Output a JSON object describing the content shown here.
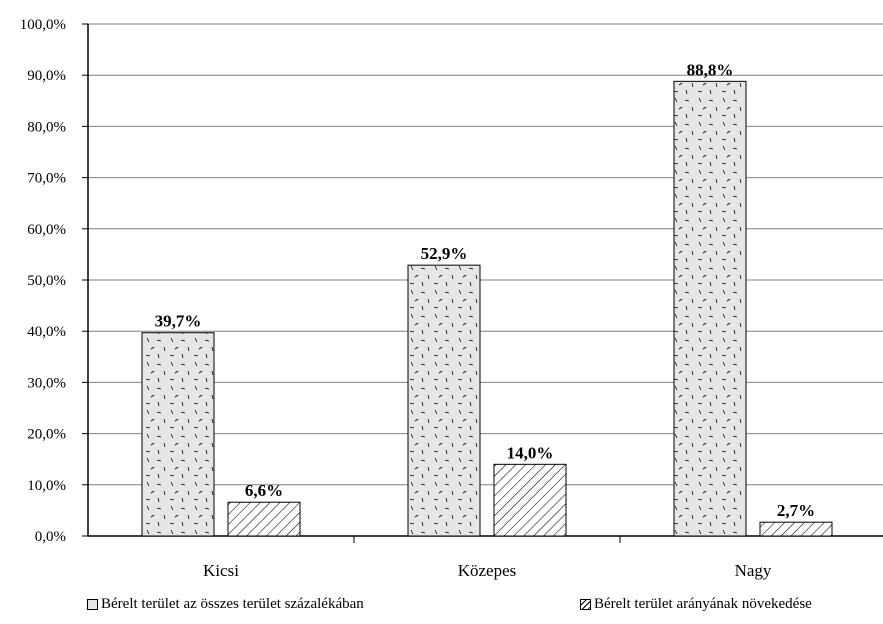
{
  "chart_data": {
    "type": "bar",
    "categories": [
      "Kicsi",
      "Közepes",
      "Nagy"
    ],
    "series": [
      {
        "name": "Bérelt terület az összes terület százalékában",
        "values": [
          39.7,
          52.9,
          88.8
        ],
        "labels": [
          "39,7%",
          "52,9%",
          "88,8%"
        ],
        "pattern": "dots",
        "fill": "#e6e6e6"
      },
      {
        "name": "Bérelt terület arányának növekedése",
        "values": [
          6.6,
          14.0,
          2.7
        ],
        "labels": [
          "6,6%",
          "14,0%",
          "2,7%"
        ],
        "pattern": "hatch",
        "fill": "#ffffff"
      }
    ],
    "yticks": [
      "0,0%",
      "10,0%",
      "20,0%",
      "30,0%",
      "40,0%",
      "50,0%",
      "60,0%",
      "70,0%",
      "80,0%",
      "90,0%",
      "100,0%"
    ],
    "ylim": [
      0,
      100
    ],
    "grid": true,
    "legend_position": "bottom",
    "title": "",
    "xlabel": "",
    "ylabel": ""
  },
  "legend": {
    "item1": "Bérelt terület az összes terület százalékában",
    "item2": "Bérelt terület arányának növekedése"
  }
}
